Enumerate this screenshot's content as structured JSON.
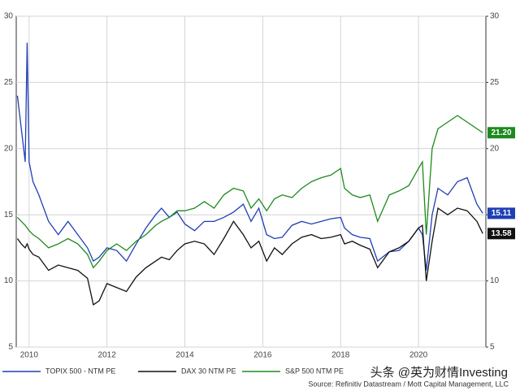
{
  "chart_data": {
    "type": "line",
    "x": [
      2009.7,
      2009.8,
      2009.9,
      2009.95,
      2010.0,
      2010.1,
      2010.25,
      2010.5,
      2010.75,
      2011.0,
      2011.25,
      2011.5,
      2011.65,
      2011.8,
      2012.0,
      2012.25,
      2012.5,
      2012.75,
      2013.0,
      2013.25,
      2013.4,
      2013.6,
      2013.8,
      2014.0,
      2014.25,
      2014.5,
      2014.75,
      2015.0,
      2015.25,
      2015.5,
      2015.7,
      2015.9,
      2016.1,
      2016.3,
      2016.5,
      2016.75,
      2017.0,
      2017.25,
      2017.5,
      2017.75,
      2018.0,
      2018.1,
      2018.3,
      2018.5,
      2018.75,
      2018.95,
      2019.25,
      2019.5,
      2019.75,
      2020.0,
      2020.1,
      2020.2,
      2020.35,
      2020.5,
      2020.75,
      2021.0,
      2021.25,
      2021.5,
      2021.65
    ],
    "series": [
      {
        "name": "TOPIX 500 - NTM PE",
        "color": "#1f3fb4",
        "last_value_label": "15.11",
        "values": [
          24,
          21.5,
          19,
          28,
          19,
          17.5,
          16.5,
          14.5,
          13.5,
          14.5,
          13.5,
          12.5,
          11.5,
          11.8,
          12.5,
          12.3,
          11.5,
          12.8,
          14,
          15,
          15.5,
          14.8,
          15.2,
          14.3,
          13.8,
          14.5,
          14.5,
          14.8,
          15.2,
          15.8,
          14.5,
          15.5,
          13.5,
          13.2,
          13.3,
          14.2,
          14.5,
          14.3,
          14.5,
          14.7,
          14.8,
          14.0,
          13.5,
          13.3,
          13.2,
          11.5,
          12.2,
          12.3,
          13.0,
          14.0,
          13.5,
          10.8,
          15.0,
          17.0,
          16.5,
          17.5,
          17.8,
          15.8,
          15.11
        ]
      },
      {
        "name": "DAX 30 NTM PE",
        "color": "#111111",
        "last_value_label": "13.58",
        "values": [
          13.2,
          12.8,
          12.5,
          12.8,
          12.4,
          12.0,
          11.8,
          10.8,
          11.2,
          11.0,
          10.8,
          10.2,
          8.2,
          8.5,
          9.8,
          9.5,
          9.2,
          10.3,
          11.0,
          11.5,
          11.8,
          11.6,
          12.3,
          12.8,
          13.0,
          12.8,
          12.0,
          13.2,
          14.5,
          13.5,
          12.5,
          13.0,
          11.5,
          12.5,
          12.0,
          12.8,
          13.3,
          13.5,
          13.2,
          13.3,
          13.5,
          12.8,
          13.0,
          12.7,
          12.4,
          11.0,
          12.2,
          12.5,
          13.0,
          14.0,
          14.2,
          10.0,
          13.0,
          15.5,
          15.0,
          15.5,
          15.3,
          14.5,
          13.58
        ]
      },
      {
        "name": "S&P 500 NTM PE",
        "color": "#1e8a1e",
        "last_value_label": "21.20",
        "values": [
          14.8,
          14.5,
          14.2,
          14.0,
          13.8,
          13.5,
          13.2,
          12.5,
          12.8,
          13.2,
          12.8,
          12.0,
          11.0,
          11.5,
          12.3,
          12.8,
          12.3,
          13.0,
          13.5,
          14.2,
          14.5,
          14.8,
          15.3,
          15.3,
          15.5,
          16.0,
          15.5,
          16.5,
          17.0,
          16.8,
          15.5,
          16.2,
          15.3,
          16.2,
          16.5,
          16.3,
          17.0,
          17.5,
          17.8,
          18.0,
          18.5,
          17.0,
          16.5,
          16.3,
          16.5,
          14.5,
          16.5,
          16.8,
          17.2,
          18.5,
          19.0,
          13.5,
          20.0,
          21.5,
          22.0,
          22.5,
          22.0,
          21.5,
          21.2
        ]
      }
    ],
    "xlim": [
      2009.67,
      2021.73
    ],
    "xticks": [
      2010,
      2012,
      2014,
      2016,
      2018,
      2020
    ],
    "ylim": [
      5,
      30
    ],
    "yticks": [
      5,
      10,
      15,
      20,
      25,
      30
    ],
    "y2lim": [
      5,
      30
    ],
    "y2ticks": [
      5,
      10,
      15,
      20,
      25,
      30
    ],
    "grid": true,
    "source": "Source: Refinitiv Datastream / Mott Capital Management, LLC",
    "watermark": "头条 @英为财情Investing"
  }
}
